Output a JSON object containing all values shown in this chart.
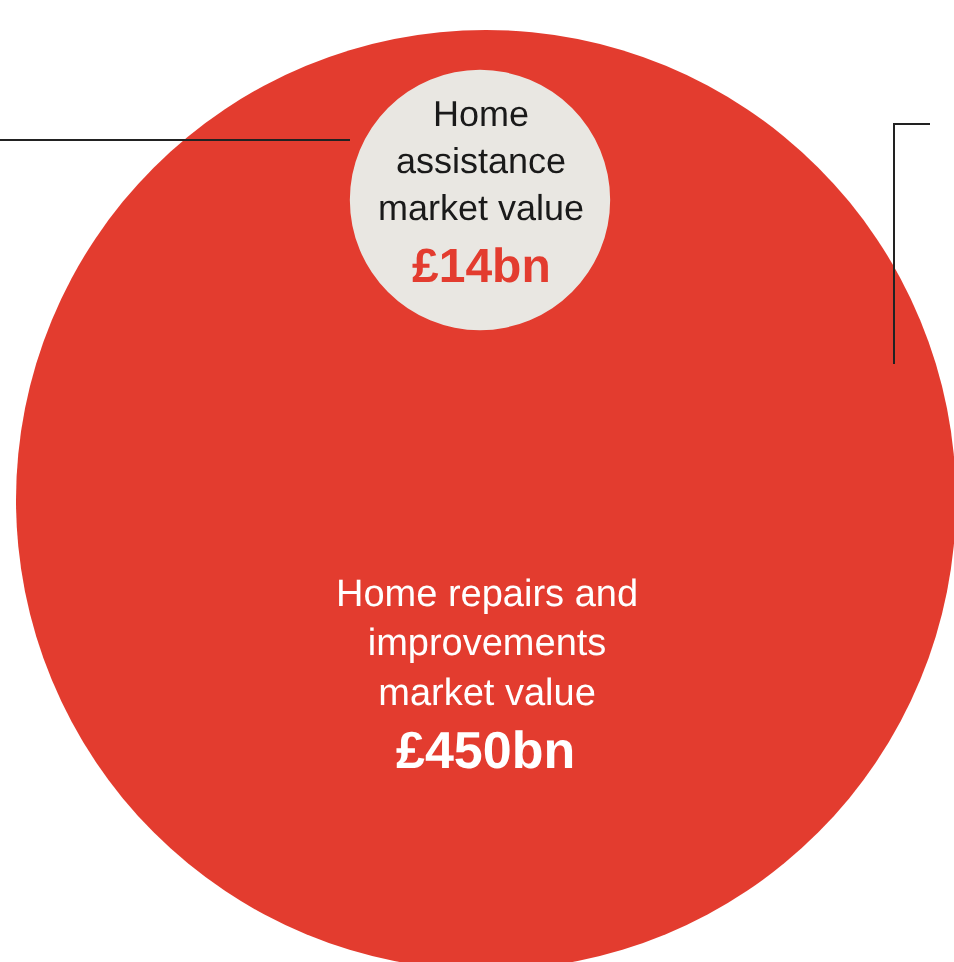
{
  "chart_data": {
    "type": "other",
    "categories": [
      "Home repairs and improvements market value",
      "Home assistance market value"
    ],
    "values": [
      450,
      14
    ],
    "value_labels": [
      "£450bn",
      "£14bn"
    ],
    "colors": [
      "#e33c2f",
      "#e9e7e2"
    ]
  }
}
